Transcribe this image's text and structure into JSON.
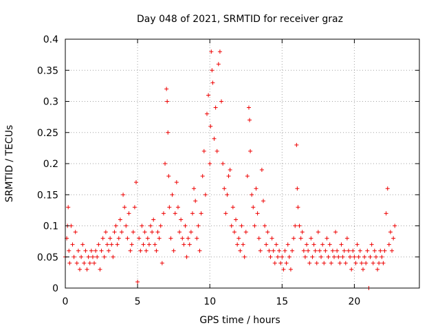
{
  "chart_data": {
    "type": "scatter",
    "title": "Day 048 of 2021, SRMTID for receiver graz",
    "xlabel": "GPS time / hours",
    "ylabel": "SRMTID / TECUs",
    "xlim": [
      0,
      24.5
    ],
    "ylim": [
      0,
      0.4
    ],
    "xticks": [
      0,
      5,
      10,
      15,
      20
    ],
    "xtick_labels": [
      "0",
      "5",
      "10",
      "15",
      "20"
    ],
    "yticks": [
      0,
      0.05,
      0.1,
      0.15,
      0.2,
      0.25,
      0.3,
      0.35,
      0.4
    ],
    "ytick_labels": [
      "0",
      "0.05",
      "0.1",
      "0.15",
      "0.2",
      "0.25",
      "0.3",
      "0.35",
      "0.4"
    ],
    "grid": true,
    "marker": "+",
    "color": "#ee0000",
    "series": [
      {
        "name": "SRMTID",
        "points": [
          [
            0.0,
            0.05
          ],
          [
            0.1,
            0.08
          ],
          [
            0.15,
            0.1
          ],
          [
            0.2,
            0.13
          ],
          [
            0.25,
            0.06
          ],
          [
            0.3,
            0.04
          ],
          [
            0.4,
            0.1
          ],
          [
            0.5,
            0.07
          ],
          [
            0.6,
            0.05
          ],
          [
            0.7,
            0.09
          ],
          [
            0.8,
            0.04
          ],
          [
            0.9,
            0.06
          ],
          [
            1.0,
            0.03
          ],
          [
            1.1,
            0.05
          ],
          [
            1.2,
            0.07
          ],
          [
            1.3,
            0.04
          ],
          [
            1.4,
            0.06
          ],
          [
            1.5,
            0.03
          ],
          [
            1.6,
            0.05
          ],
          [
            1.7,
            0.04
          ],
          [
            1.8,
            0.06
          ],
          [
            1.9,
            0.05
          ],
          [
            2.0,
            0.04
          ],
          [
            2.1,
            0.06
          ],
          [
            2.2,
            0.05
          ],
          [
            2.3,
            0.07
          ],
          [
            2.4,
            0.03
          ],
          [
            2.5,
            0.06
          ],
          [
            2.6,
            0.08
          ],
          [
            2.7,
            0.05
          ],
          [
            2.8,
            0.09
          ],
          [
            2.9,
            0.07
          ],
          [
            3.0,
            0.06
          ],
          [
            3.1,
            0.08
          ],
          [
            3.2,
            0.07
          ],
          [
            3.3,
            0.05
          ],
          [
            3.4,
            0.09
          ],
          [
            3.5,
            0.1
          ],
          [
            3.6,
            0.07
          ],
          [
            3.7,
            0.08
          ],
          [
            3.8,
            0.11
          ],
          [
            3.9,
            0.09
          ],
          [
            4.0,
            0.15
          ],
          [
            4.1,
            0.13
          ],
          [
            4.2,
            0.1
          ],
          [
            4.3,
            0.08
          ],
          [
            4.4,
            0.12
          ],
          [
            4.5,
            0.06
          ],
          [
            4.6,
            0.07
          ],
          [
            4.7,
            0.09
          ],
          [
            4.8,
            0.13
          ],
          [
            4.9,
            0.17
          ],
          [
            5.0,
            0.01
          ],
          [
            5.1,
            0.08
          ],
          [
            5.2,
            0.06
          ],
          [
            5.3,
            0.1
          ],
          [
            5.4,
            0.07
          ],
          [
            5.5,
            0.09
          ],
          [
            5.6,
            0.06
          ],
          [
            5.7,
            0.08
          ],
          [
            5.8,
            0.07
          ],
          [
            5.9,
            0.1
          ],
          [
            6.0,
            0.09
          ],
          [
            6.1,
            0.11
          ],
          [
            6.2,
            0.07
          ],
          [
            6.3,
            0.06
          ],
          [
            6.4,
            0.09
          ],
          [
            6.5,
            0.08
          ],
          [
            6.6,
            0.1
          ],
          [
            6.7,
            0.04
          ],
          [
            6.8,
            0.12
          ],
          [
            6.9,
            0.2
          ],
          [
            7.0,
            0.32
          ],
          [
            7.05,
            0.3
          ],
          [
            7.1,
            0.25
          ],
          [
            7.15,
            0.18
          ],
          [
            7.2,
            0.13
          ],
          [
            7.3,
            0.08
          ],
          [
            7.4,
            0.15
          ],
          [
            7.5,
            0.06
          ],
          [
            7.6,
            0.12
          ],
          [
            7.7,
            0.17
          ],
          [
            7.8,
            0.13
          ],
          [
            7.9,
            0.09
          ],
          [
            8.0,
            0.11
          ],
          [
            8.1,
            0.08
          ],
          [
            8.2,
            0.07
          ],
          [
            8.3,
            0.1
          ],
          [
            8.4,
            0.05
          ],
          [
            8.5,
            0.08
          ],
          [
            8.6,
            0.07
          ],
          [
            8.7,
            0.09
          ],
          [
            8.8,
            0.12
          ],
          [
            8.9,
            0.16
          ],
          [
            9.0,
            0.14
          ],
          [
            9.1,
            0.08
          ],
          [
            9.2,
            0.1
          ],
          [
            9.3,
            0.06
          ],
          [
            9.4,
            0.12
          ],
          [
            9.5,
            0.18
          ],
          [
            9.6,
            0.22
          ],
          [
            9.7,
            0.15
          ],
          [
            9.8,
            0.28
          ],
          [
            9.9,
            0.31
          ],
          [
            10.0,
            0.2
          ],
          [
            10.05,
            0.26
          ],
          [
            10.1,
            0.38
          ],
          [
            10.15,
            0.35
          ],
          [
            10.2,
            0.33
          ],
          [
            10.3,
            0.24
          ],
          [
            10.4,
            0.29
          ],
          [
            10.5,
            0.22
          ],
          [
            10.6,
            0.36
          ],
          [
            10.7,
            0.38
          ],
          [
            10.8,
            0.3
          ],
          [
            10.9,
            0.2
          ],
          [
            11.0,
            0.16
          ],
          [
            11.1,
            0.12
          ],
          [
            11.2,
            0.15
          ],
          [
            11.3,
            0.18
          ],
          [
            11.4,
            0.19
          ],
          [
            11.5,
            0.1
          ],
          [
            11.6,
            0.13
          ],
          [
            11.7,
            0.09
          ],
          [
            11.8,
            0.11
          ],
          [
            11.9,
            0.07
          ],
          [
            12.0,
            0.08
          ],
          [
            12.1,
            0.06
          ],
          [
            12.2,
            0.1
          ],
          [
            12.3,
            0.07
          ],
          [
            12.4,
            0.05
          ],
          [
            12.5,
            0.09
          ],
          [
            12.6,
            0.18
          ],
          [
            12.7,
            0.29
          ],
          [
            12.75,
            0.27
          ],
          [
            12.8,
            0.22
          ],
          [
            12.9,
            0.15
          ],
          [
            13.0,
            0.13
          ],
          [
            13.1,
            0.1
          ],
          [
            13.2,
            0.16
          ],
          [
            13.3,
            0.12
          ],
          [
            13.4,
            0.08
          ],
          [
            13.5,
            0.06
          ],
          [
            13.6,
            0.19
          ],
          [
            13.7,
            0.14
          ],
          [
            13.8,
            0.1
          ],
          [
            13.9,
            0.07
          ],
          [
            14.0,
            0.09
          ],
          [
            14.1,
            0.06
          ],
          [
            14.2,
            0.05
          ],
          [
            14.3,
            0.08
          ],
          [
            14.4,
            0.06
          ],
          [
            14.5,
            0.04
          ],
          [
            14.6,
            0.07
          ],
          [
            14.7,
            0.05
          ],
          [
            14.8,
            0.06
          ],
          [
            14.9,
            0.04
          ],
          [
            15.0,
            0.05
          ],
          [
            15.1,
            0.03
          ],
          [
            15.2,
            0.06
          ],
          [
            15.3,
            0.04
          ],
          [
            15.4,
            0.07
          ],
          [
            15.5,
            0.05
          ],
          [
            15.6,
            0.03
          ],
          [
            15.7,
            0.06
          ],
          [
            15.8,
            0.08
          ],
          [
            15.9,
            0.1
          ],
          [
            16.0,
            0.23
          ],
          [
            16.05,
            0.16
          ],
          [
            16.1,
            0.13
          ],
          [
            16.2,
            0.1
          ],
          [
            16.3,
            0.08
          ],
          [
            16.4,
            0.09
          ],
          [
            16.5,
            0.06
          ],
          [
            16.6,
            0.05
          ],
          [
            16.7,
            0.07
          ],
          [
            16.8,
            0.06
          ],
          [
            16.9,
            0.04
          ],
          [
            17.0,
            0.08
          ],
          [
            17.1,
            0.05
          ],
          [
            17.2,
            0.07
          ],
          [
            17.3,
            0.06
          ],
          [
            17.4,
            0.04
          ],
          [
            17.5,
            0.09
          ],
          [
            17.6,
            0.06
          ],
          [
            17.7,
            0.05
          ],
          [
            17.8,
            0.07
          ],
          [
            17.9,
            0.04
          ],
          [
            18.0,
            0.06
          ],
          [
            18.1,
            0.08
          ],
          [
            18.2,
            0.05
          ],
          [
            18.3,
            0.07
          ],
          [
            18.4,
            0.04
          ],
          [
            18.5,
            0.06
          ],
          [
            18.6,
            0.05
          ],
          [
            18.7,
            0.09
          ],
          [
            18.8,
            0.06
          ],
          [
            18.9,
            0.05
          ],
          [
            19.0,
            0.04
          ],
          [
            19.1,
            0.07
          ],
          [
            19.2,
            0.05
          ],
          [
            19.3,
            0.06
          ],
          [
            19.4,
            0.04
          ],
          [
            19.5,
            0.08
          ],
          [
            19.6,
            0.06
          ],
          [
            19.7,
            0.05
          ],
          [
            19.8,
            0.03
          ],
          [
            19.9,
            0.06
          ],
          [
            20.0,
            0.05
          ],
          [
            20.1,
            0.04
          ],
          [
            20.2,
            0.07
          ],
          [
            20.3,
            0.05
          ],
          [
            20.4,
            0.06
          ],
          [
            20.5,
            0.04
          ],
          [
            20.6,
            0.03
          ],
          [
            20.7,
            0.05
          ],
          [
            20.8,
            0.04
          ],
          [
            20.9,
            0.06
          ],
          [
            21.0,
            0.0
          ],
          [
            21.1,
            0.05
          ],
          [
            21.2,
            0.07
          ],
          [
            21.3,
            0.04
          ],
          [
            21.4,
            0.06
          ],
          [
            21.5,
            0.05
          ],
          [
            21.6,
            0.03
          ],
          [
            21.7,
            0.04
          ],
          [
            21.8,
            0.06
          ],
          [
            21.9,
            0.05
          ],
          [
            22.0,
            0.04
          ],
          [
            22.1,
            0.06
          ],
          [
            22.2,
            0.12
          ],
          [
            22.3,
            0.16
          ],
          [
            22.4,
            0.07
          ],
          [
            22.5,
            0.09
          ],
          [
            22.6,
            0.06
          ],
          [
            22.7,
            0.08
          ],
          [
            22.8,
            0.1
          ]
        ]
      }
    ]
  }
}
